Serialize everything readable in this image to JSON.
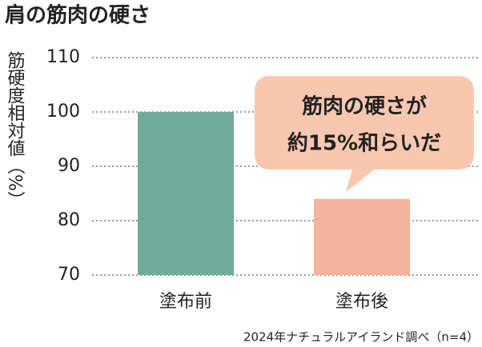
{
  "chart_data": {
    "type": "bar",
    "title": "肩の筋肉の硬さ",
    "y_label": "筋硬度相対値（%）",
    "categories": [
      "塗布前",
      "塗布後"
    ],
    "values": [
      100,
      84
    ],
    "colors": [
      "#6fab98",
      "#f4b49b"
    ],
    "ylim": [
      70,
      110
    ],
    "yticks": [
      70,
      80,
      90,
      100,
      110
    ],
    "grid": true,
    "annotation": [
      "筋肉の硬さが",
      "約15%和らいだ"
    ],
    "source": "2024年ナチュラルアイランド調べ（n=4）"
  }
}
